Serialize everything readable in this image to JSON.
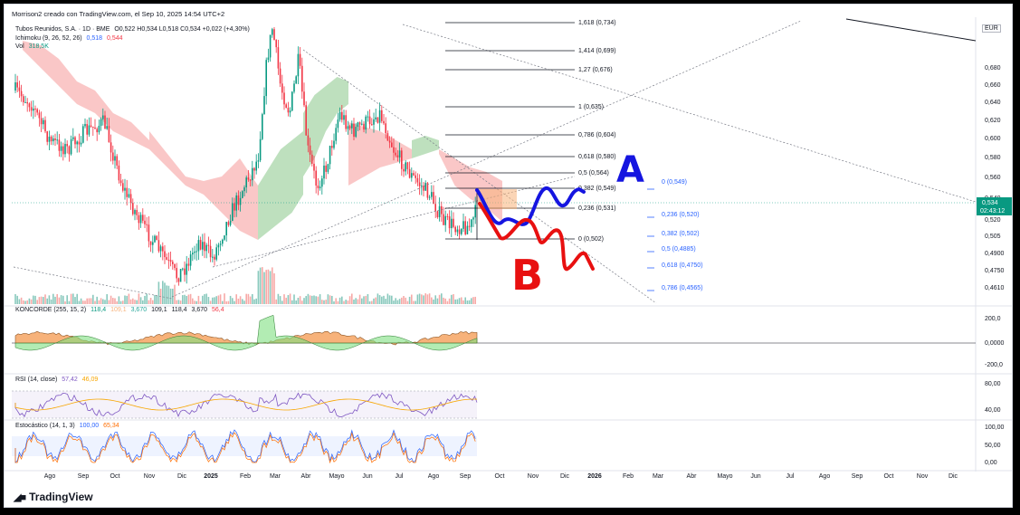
{
  "header": {
    "caption": "Morrison2 creado con TradingView.com, el Sep 10, 2025 14:54 UTC+2",
    "currency": "EUR",
    "brand": "TradingView"
  },
  "legend": {
    "symbol": "Tubos Reunidos, S.A. · 1D · BME",
    "ohlc": "O0,522  H0,534  L0,518  C0,534  +0,022 (+4,30%)",
    "ichimoku_label": "Ichimoku (9, 26, 52, 26)",
    "ichimoku_v1": "0,518",
    "ichimoku_v2": "0,544",
    "vol_label": "Vol",
    "vol_value": "318,5K"
  },
  "price_tag": {
    "price": "0,534",
    "countdown": "02:43:12"
  },
  "annotations": {
    "a": "A",
    "b": "B"
  },
  "colors": {
    "up": "#089981",
    "down": "#f23645",
    "cloud_red": "#f8b4b4",
    "cloud_green": "#a8d5a8",
    "fib": "#131722",
    "fib2": "#2962ff",
    "blue_pen": "#1515e0",
    "red_pen": "#e81010",
    "rect": "#f7b27a"
  },
  "chart_data": [
    {
      "type": "line",
      "name": "price",
      "title": "Tubos Reunidos, S.A. · 1D · BME",
      "y_ticks": [
        "0,680",
        "0,660",
        "0,640",
        "0,620",
        "0,600",
        "0,580",
        "0,560",
        "0,540",
        "0,520",
        "0,505",
        "0,4900",
        "0,4750",
        "0,4610"
      ],
      "x_ticks": [
        "Ago",
        "Sep",
        "Oct",
        "Nov",
        "Dic",
        "2025",
        "Feb",
        "Mar",
        "Abr",
        "Mayo",
        "Jun",
        "Jul",
        "Ago",
        "Sep",
        "Oct",
        "Nov",
        "Dic",
        "2026",
        "Feb",
        "Mar",
        "Abr",
        "Mayo",
        "Jun",
        "Jul",
        "Ago",
        "Sep",
        "Oct",
        "Nov",
        "Dic"
      ],
      "fib_levels": [
        {
          "label": "1,618 (0,734)"
        },
        {
          "label": "1,414 (0,699)"
        },
        {
          "label": "1,27 (0,676)"
        },
        {
          "label": "1 (0,635)"
        },
        {
          "label": "0,786 (0,604)"
        },
        {
          "label": "0,618 (0,580)"
        },
        {
          "label": "0,5 (0,564)"
        },
        {
          "label": "0,382 (0,549)"
        },
        {
          "label": "0,236 (0,531)"
        },
        {
          "label": "0 (0,502)"
        }
      ],
      "fib_retracement": [
        {
          "label": "0 (0,549)"
        },
        {
          "label": "0,236 (0,520)"
        },
        {
          "label": "0,382 (0,502)"
        },
        {
          "label": "0,5 (0,4885)"
        },
        {
          "label": "0,618 (0,4750)"
        },
        {
          "label": "0,786 (0,4565)"
        }
      ]
    },
    {
      "type": "area",
      "name": "KONCORDE (255, 15, 2)",
      "values_text": [
        "118,4",
        "109,1",
        "3,670",
        "109,1",
        "118,4",
        "3,670",
        "56,4"
      ],
      "y_ticks": [
        "200,0",
        "0,0000",
        "-200,0"
      ]
    },
    {
      "type": "line",
      "name": "RSI (14, close)",
      "values_text": [
        "57,42",
        "46,09"
      ],
      "y_ticks": [
        "80,00",
        "40,00"
      ]
    },
    {
      "type": "line",
      "name": "Estocástico (14, 1, 3)",
      "values_text": [
        "100,00",
        "65,34"
      ],
      "y_ticks": [
        "100,00",
        "50,00",
        "0,00"
      ]
    }
  ]
}
